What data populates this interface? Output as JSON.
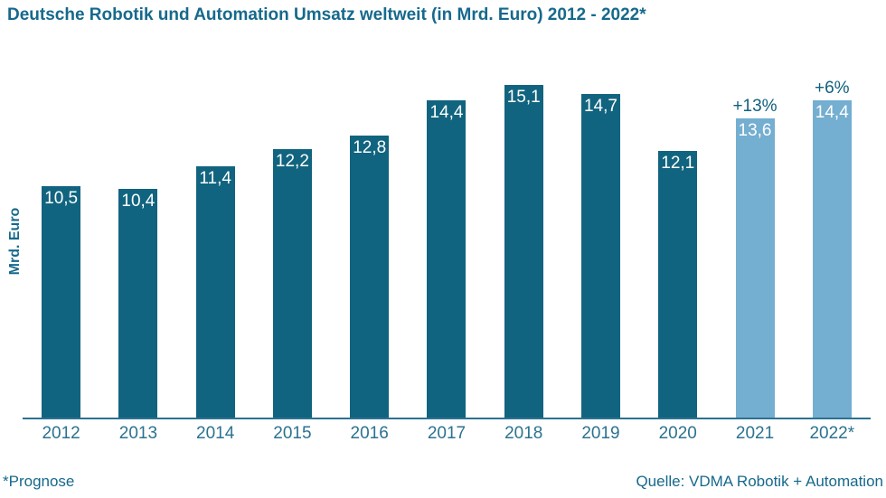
{
  "title": "Deutsche Robotik und Automation Umsatz weltweit (in Mrd. Euro) 2012 - 2022*",
  "y_axis_label": "Mrd. Euro",
  "footnote": "*Prognose",
  "source": "Quelle: VDMA Robotik + Automation",
  "colors": {
    "bar_actual": "#11647F",
    "bar_forecast": "#74AED0",
    "title_text": "#16698C",
    "tick_text": "#2B7291",
    "annotation_text": "#11607E",
    "axis_line": "#2B7291",
    "value_text": "#ffffff",
    "background": "#ffffff"
  },
  "chart_data": {
    "type": "bar",
    "title": "Deutsche Robotik und Automation Umsatz weltweit (in Mrd. Euro) 2012 - 2022*",
    "xlabel": "",
    "ylabel": "Mrd. Euro",
    "categories": [
      "2012",
      "2013",
      "2014",
      "2015",
      "2016",
      "2017",
      "2018",
      "2019",
      "2020",
      "2021",
      "2022*"
    ],
    "values": [
      10.5,
      10.4,
      11.4,
      12.2,
      12.8,
      14.4,
      15.1,
      14.7,
      12.1,
      13.6,
      14.4
    ],
    "value_labels": [
      "10,5",
      "10,4",
      "11,4",
      "12,2",
      "12,8",
      "14,4",
      "15,1",
      "14,7",
      "12,1",
      "13,6",
      "14,4"
    ],
    "annotations": [
      null,
      null,
      null,
      null,
      null,
      null,
      null,
      null,
      null,
      "+13%",
      "+6%"
    ],
    "forecast": [
      false,
      false,
      false,
      false,
      false,
      false,
      false,
      false,
      false,
      true,
      true
    ],
    "ylim": [
      0,
      16.5
    ],
    "grid": false,
    "legend": null,
    "value_labels_position": "inside-top",
    "unit": "Mrd. Euro"
  }
}
